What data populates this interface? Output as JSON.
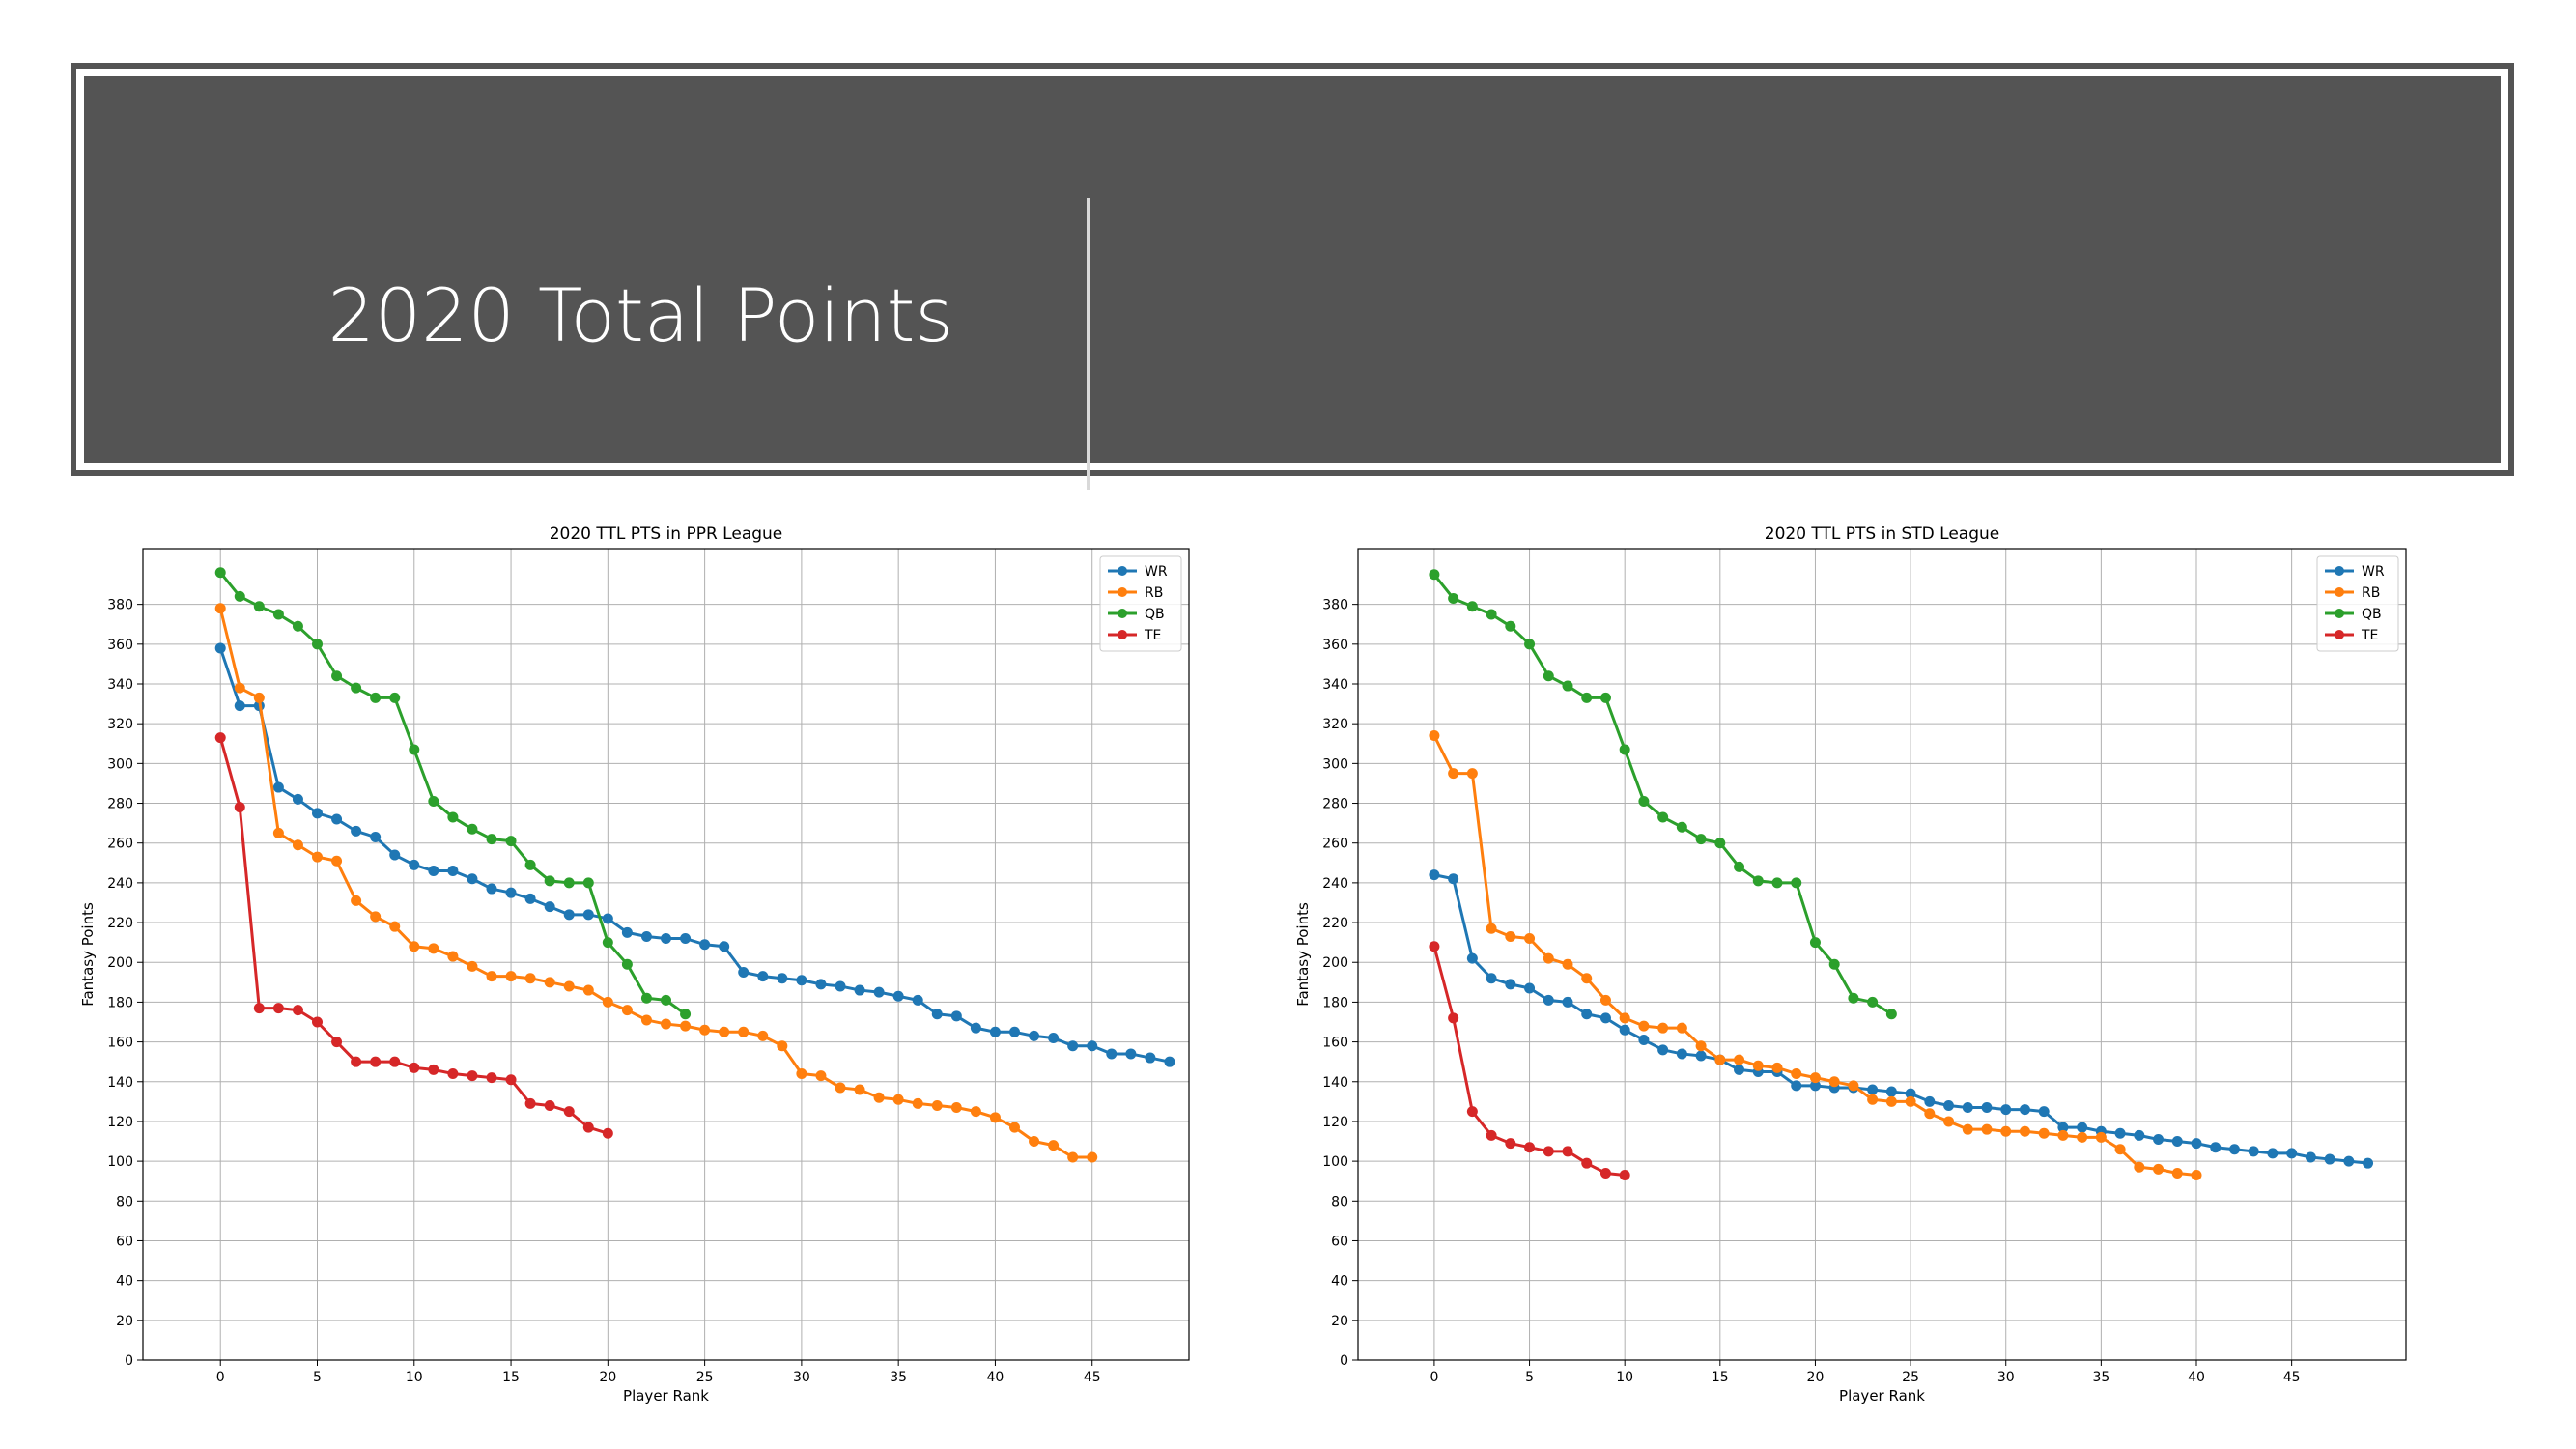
{
  "slide": {
    "title": "2020 Total Points"
  },
  "chart_data": [
    {
      "type": "line",
      "title": "2020 TTL PTS in PPR League",
      "xlabel": "Player Rank",
      "ylabel": "Fantasy Points",
      "xlim": [
        -4,
        50
      ],
      "ylim": [
        0,
        400
      ],
      "xticks": [
        0,
        5,
        10,
        15,
        20,
        25,
        30,
        35,
        40,
        45
      ],
      "yticks": [
        0,
        20,
        40,
        60,
        80,
        100,
        120,
        140,
        160,
        180,
        200,
        220,
        240,
        260,
        280,
        300,
        320,
        340,
        360,
        380
      ],
      "grid": true,
      "legend_position": "top-right",
      "series": [
        {
          "name": "WR",
          "color": "#1f77b4",
          "values": [
            358,
            329,
            329,
            288,
            282,
            275,
            272,
            266,
            263,
            254,
            249,
            246,
            246,
            242,
            237,
            235,
            232,
            228,
            224,
            224,
            222,
            215,
            213,
            212,
            212,
            209,
            208,
            195,
            193,
            192,
            191,
            189,
            188,
            186,
            185,
            183,
            181,
            174,
            173,
            167,
            165,
            165,
            163,
            162,
            158,
            158,
            154,
            154,
            152,
            150
          ]
        },
        {
          "name": "RB",
          "color": "#ff7f0e",
          "values": [
            378,
            338,
            333,
            265,
            259,
            253,
            251,
            231,
            223,
            218,
            208,
            207,
            203,
            198,
            193,
            193,
            192,
            190,
            188,
            186,
            180,
            176,
            171,
            169,
            168,
            166,
            165,
            165,
            163,
            158,
            144,
            143,
            137,
            136,
            132,
            131,
            129,
            128,
            127,
            125,
            122,
            117,
            110,
            108,
            102,
            102
          ]
        },
        {
          "name": "QB",
          "color": "#2ca02c",
          "values": [
            396,
            384,
            379,
            375,
            369,
            360,
            344,
            338,
            333,
            333,
            307,
            281,
            273,
            267,
            262,
            261,
            249,
            241,
            240,
            240,
            210,
            199,
            182,
            181,
            174
          ]
        },
        {
          "name": "TE",
          "color": "#d62728",
          "values": [
            313,
            278,
            177,
            177,
            176,
            170,
            160,
            150,
            150,
            150,
            147,
            146,
            144,
            143,
            142,
            141,
            129,
            128,
            125,
            117,
            114
          ]
        }
      ]
    },
    {
      "type": "line",
      "title": "2020 TTL PTS in STD League",
      "xlabel": "Player Rank",
      "ylabel": "Fantasy Points",
      "xlim": [
        -4,
        51
      ],
      "ylim": [
        0,
        400
      ],
      "xticks": [
        0,
        5,
        10,
        15,
        20,
        25,
        30,
        35,
        40,
        45
      ],
      "yticks": [
        0,
        20,
        40,
        60,
        80,
        100,
        120,
        140,
        160,
        180,
        200,
        220,
        240,
        260,
        280,
        300,
        320,
        340,
        360,
        380
      ],
      "grid": true,
      "legend_position": "top-right",
      "series": [
        {
          "name": "WR",
          "color": "#1f77b4",
          "values": [
            244,
            242,
            202,
            192,
            189,
            187,
            181,
            180,
            174,
            172,
            166,
            161,
            156,
            154,
            153,
            151,
            146,
            145,
            145,
            138,
            138,
            137,
            137,
            136,
            135,
            134,
            130,
            128,
            127,
            127,
            126,
            126,
            125,
            117,
            117,
            115,
            114,
            113,
            111,
            110,
            109,
            107,
            106,
            105,
            104,
            104,
            102,
            101,
            100,
            99
          ]
        },
        {
          "name": "RB",
          "color": "#ff7f0e",
          "values": [
            314,
            295,
            295,
            217,
            213,
            212,
            202,
            199,
            192,
            181,
            172,
            168,
            167,
            167,
            158,
            151,
            151,
            148,
            147,
            144,
            142,
            140,
            138,
            131,
            130,
            130,
            124,
            120,
            116,
            116,
            115,
            115,
            114,
            113,
            112,
            112,
            106,
            97,
            96,
            94,
            93
          ]
        },
        {
          "name": "QB",
          "color": "#2ca02c",
          "values": [
            395,
            383,
            379,
            375,
            369,
            360,
            344,
            339,
            333,
            333,
            307,
            281,
            273,
            268,
            262,
            260,
            248,
            241,
            240,
            240,
            210,
            199,
            182,
            180,
            174
          ]
        },
        {
          "name": "TE",
          "color": "#d62728",
          "values": [
            208,
            172,
            125,
            113,
            109,
            107,
            105,
            105,
            99,
            94,
            93
          ]
        }
      ]
    }
  ]
}
